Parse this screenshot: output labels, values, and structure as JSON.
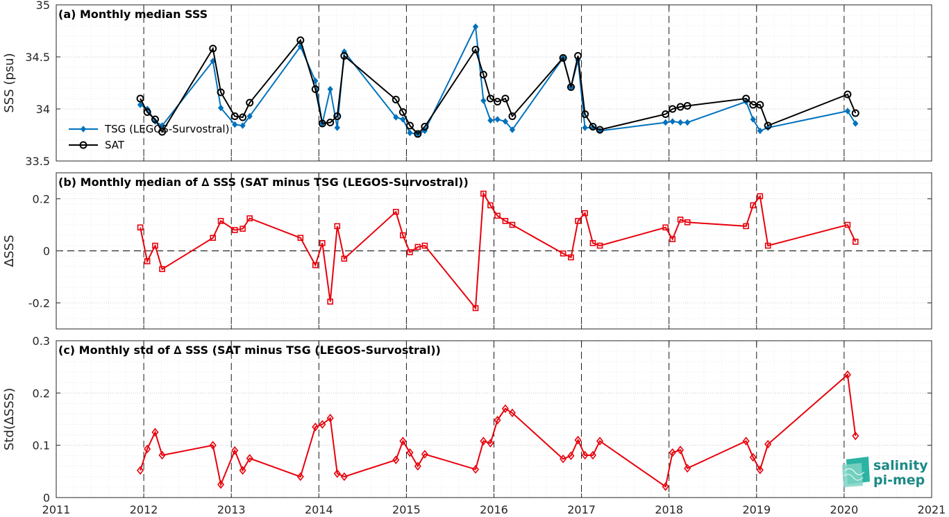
{
  "colors": {
    "tsg": "#0072bd",
    "sat": "#000000",
    "diff": "#e8000b",
    "grid": "#c8c8c8",
    "logo": "#1b8a86"
  },
  "logo": {
    "line1": "salinity",
    "line2": "pi-mep",
    "icon": "salinity-pi-mep-logo-icon"
  },
  "chart_data": [
    {
      "type": "line",
      "title": "(a) Monthly median SSS",
      "ylabel": "SSS (psu)",
      "xlabel": "",
      "xlim": [
        2011,
        2021
      ],
      "ylim": [
        33.5,
        35
      ],
      "yticks": [
        33.5,
        34,
        34.5,
        35
      ],
      "ytick_labels": [
        "33.5",
        "34",
        "34.5",
        "35"
      ],
      "xticks": [
        2011,
        2012,
        2013,
        2014,
        2015,
        2016,
        2017,
        2018,
        2019,
        2020,
        2021
      ],
      "xtick_labels": [],
      "grid": true,
      "legend_position": "left",
      "series": [
        {
          "name": "TSG (LEGOS-Survostral)",
          "marker": "diamond",
          "x": [
            2011.96,
            2012.04,
            2012.13,
            2012.21,
            2012.79,
            2012.88,
            2013.04,
            2013.13,
            2013.21,
            2013.79,
            2013.96,
            2014.04,
            2014.13,
            2014.21,
            2014.29,
            2014.88,
            2014.96,
            2015.04,
            2015.13,
            2015.21,
            2015.79,
            2015.88,
            2015.96,
            2016.04,
            2016.13,
            2016.21,
            2016.79,
            2016.88,
            2016.96,
            2017.04,
            2017.13,
            2017.21,
            2017.96,
            2018.04,
            2018.13,
            2018.21,
            2018.88,
            2018.96,
            2019.04,
            2019.13,
            2020.04,
            2020.13
          ],
          "y": [
            34.04,
            34.0,
            33.88,
            33.84,
            34.46,
            34.01,
            33.85,
            33.84,
            33.93,
            34.6,
            34.27,
            33.86,
            34.19,
            33.82,
            34.55,
            33.92,
            33.9,
            33.77,
            33.76,
            33.79,
            34.79,
            34.08,
            33.89,
            33.9,
            33.88,
            33.8,
            34.49,
            34.21,
            34.47,
            33.82,
            33.82,
            33.79,
            33.87,
            33.88,
            33.87,
            33.87,
            34.07,
            33.9,
            33.79,
            33.82,
            33.98,
            33.86
          ]
        },
        {
          "name": "SAT",
          "marker": "circle",
          "x": [
            2011.96,
            2012.04,
            2012.13,
            2012.21,
            2012.79,
            2012.88,
            2013.04,
            2013.13,
            2013.21,
            2013.79,
            2013.96,
            2014.04,
            2014.13,
            2014.21,
            2014.29,
            2014.88,
            2014.96,
            2015.04,
            2015.13,
            2015.21,
            2015.79,
            2015.88,
            2015.96,
            2016.04,
            2016.13,
            2016.21,
            2016.79,
            2016.88,
            2016.96,
            2017.04,
            2017.13,
            2017.21,
            2017.96,
            2018.04,
            2018.13,
            2018.21,
            2018.88,
            2018.96,
            2019.04,
            2019.13,
            2020.04,
            2020.13
          ],
          "y": [
            34.1,
            33.97,
            33.9,
            33.78,
            34.58,
            34.16,
            33.93,
            33.92,
            34.06,
            34.66,
            34.19,
            33.86,
            33.87,
            33.93,
            34.51,
            34.09,
            33.97,
            33.84,
            33.76,
            33.83,
            34.57,
            34.33,
            34.1,
            34.07,
            34.1,
            33.93,
            34.49,
            34.21,
            34.51,
            33.95,
            33.83,
            33.8,
            33.95,
            34.0,
            34.02,
            34.03,
            34.1,
            34.04,
            34.04,
            33.84,
            34.14,
            33.96
          ]
        }
      ]
    },
    {
      "type": "line",
      "title": "(b) Monthly median of ∆ SSS (SAT minus TSG (LEGOS-Survostral))",
      "ylabel": "∆SSS",
      "xlabel": "",
      "xlim": [
        2011,
        2021
      ],
      "ylim": [
        -0.3,
        0.3
      ],
      "yticks": [
        -0.2,
        0,
        0.2
      ],
      "ytick_labels": [
        "-0.2",
        "0",
        "0.2"
      ],
      "xticks": [
        2011,
        2012,
        2013,
        2014,
        2015,
        2016,
        2017,
        2018,
        2019,
        2020,
        2021
      ],
      "xtick_labels": [],
      "grid": true,
      "zero_line": true,
      "series": [
        {
          "marker": "square",
          "x": [
            2011.96,
            2012.04,
            2012.13,
            2012.21,
            2012.79,
            2012.88,
            2013.04,
            2013.13,
            2013.21,
            2013.79,
            2013.96,
            2014.04,
            2014.13,
            2014.21,
            2014.29,
            2014.88,
            2014.96,
            2015.04,
            2015.13,
            2015.21,
            2015.79,
            2015.88,
            2015.96,
            2016.04,
            2016.13,
            2016.21,
            2016.79,
            2016.88,
            2016.96,
            2017.04,
            2017.13,
            2017.21,
            2017.96,
            2018.04,
            2018.13,
            2018.21,
            2018.88,
            2018.96,
            2019.04,
            2019.13,
            2020.04,
            2020.13
          ],
          "y": [
            0.09,
            -0.04,
            0.02,
            -0.07,
            0.05,
            0.115,
            0.08,
            0.085,
            0.125,
            0.05,
            -0.055,
            0.03,
            -0.195,
            0.095,
            -0.03,
            0.15,
            0.06,
            -0.005,
            0.015,
            0.02,
            -0.22,
            0.22,
            0.175,
            0.135,
            0.115,
            0.1,
            -0.01,
            -0.025,
            0.115,
            0.145,
            0.03,
            0.02,
            0.09,
            0.045,
            0.12,
            0.11,
            0.095,
            0.175,
            0.21,
            0.02,
            0.1,
            0.035
          ]
        }
      ]
    },
    {
      "type": "line",
      "title": "(c) Monthly std of ∆ SSS (SAT minus TSG (LEGOS-Survostral))",
      "ylabel": "Std(∆SSS)",
      "xlabel": "",
      "xlim": [
        2011,
        2021
      ],
      "ylim": [
        0,
        0.3
      ],
      "yticks": [
        0,
        0.1,
        0.2,
        0.3
      ],
      "ytick_labels": [
        "0",
        "0.1",
        "0.2",
        "0.3"
      ],
      "xticks": [
        2011,
        2012,
        2013,
        2014,
        2015,
        2016,
        2017,
        2018,
        2019,
        2020,
        2021
      ],
      "xtick_labels": [
        "2011",
        "2012",
        "2013",
        "2014",
        "2015",
        "2016",
        "2017",
        "2018",
        "2019",
        "2020",
        "2021"
      ],
      "grid": true,
      "series": [
        {
          "marker": "diamond",
          "x": [
            2011.96,
            2012.04,
            2012.13,
            2012.21,
            2012.79,
            2012.88,
            2013.04,
            2013.13,
            2013.21,
            2013.79,
            2013.96,
            2014.04,
            2014.13,
            2014.21,
            2014.29,
            2014.88,
            2014.96,
            2015.04,
            2015.13,
            2015.21,
            2015.79,
            2015.88,
            2015.96,
            2016.04,
            2016.13,
            2016.21,
            2016.79,
            2016.88,
            2016.96,
            2017.04,
            2017.13,
            2017.21,
            2017.96,
            2018.04,
            2018.13,
            2018.21,
            2018.88,
            2018.96,
            2019.04,
            2019.13,
            2020.04,
            2020.13
          ],
          "y": [
            0.052,
            0.093,
            0.125,
            0.081,
            0.1,
            0.025,
            0.09,
            0.052,
            0.075,
            0.04,
            0.135,
            0.14,
            0.152,
            0.046,
            0.04,
            0.072,
            0.108,
            0.086,
            0.06,
            0.083,
            0.054,
            0.108,
            0.104,
            0.148,
            0.17,
            0.162,
            0.074,
            0.08,
            0.11,
            0.081,
            0.081,
            0.108,
            0.021,
            0.086,
            0.091,
            0.056,
            0.108,
            0.077,
            0.053,
            0.102,
            0.235,
            0.118
          ]
        }
      ]
    }
  ]
}
